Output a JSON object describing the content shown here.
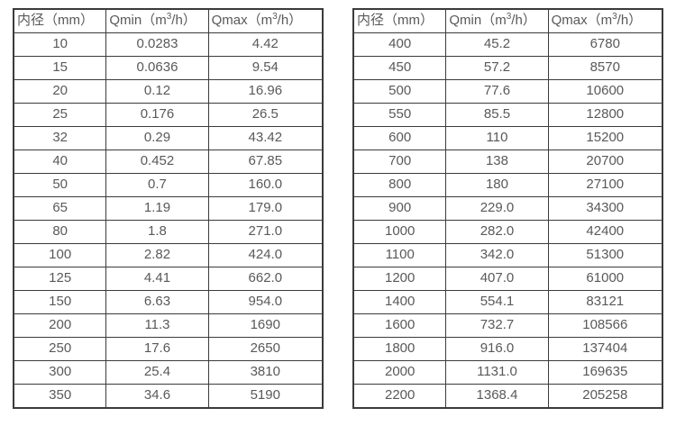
{
  "tables": [
    {
      "name": "flow-rate-table-small-diameters",
      "headers": [
        "内径（mm）",
        "Qmin（m³/h）",
        "Qmax（m³/h）"
      ],
      "rows": [
        [
          "10",
          "0.0283",
          "4.42"
        ],
        [
          "15",
          "0.0636",
          "9.54"
        ],
        [
          "20",
          "0.12",
          "16.96"
        ],
        [
          "25",
          "0.176",
          "26.5"
        ],
        [
          "32",
          "0.29",
          "43.42"
        ],
        [
          "40",
          "0.452",
          "67.85"
        ],
        [
          "50",
          "0.7",
          "160.0"
        ],
        [
          "65",
          "1.19",
          "179.0"
        ],
        [
          "80",
          "1.8",
          "271.0"
        ],
        [
          "100",
          "2.82",
          "424.0"
        ],
        [
          "125",
          "4.41",
          "662.0"
        ],
        [
          "150",
          "6.63",
          "954.0"
        ],
        [
          "200",
          "11.3",
          "1690"
        ],
        [
          "250",
          "17.6",
          "2650"
        ],
        [
          "300",
          "25.4",
          "3810"
        ],
        [
          "350",
          "34.6",
          "5190"
        ]
      ]
    },
    {
      "name": "flow-rate-table-large-diameters",
      "headers": [
        "内径（mm）",
        "Qmin（m³/h）",
        "Qmax（m³/h）"
      ],
      "rows": [
        [
          "400",
          "45.2",
          "6780"
        ],
        [
          "450",
          "57.2",
          "8570"
        ],
        [
          "500",
          "77.6",
          "10600"
        ],
        [
          "550",
          "85.5",
          "12800"
        ],
        [
          "600",
          "110",
          "15200"
        ],
        [
          "700",
          "138",
          "20700"
        ],
        [
          "800",
          "180",
          "27100"
        ],
        [
          "900",
          "229.0",
          "34300"
        ],
        [
          "1000",
          "282.0",
          "42400"
        ],
        [
          "1100",
          "342.0",
          "51300"
        ],
        [
          "1200",
          "407.0",
          "61000"
        ],
        [
          "1400",
          "554.1",
          "83121"
        ],
        [
          "1600",
          "732.7",
          "108566"
        ],
        [
          "1800",
          "916.0",
          "137404"
        ],
        [
          "2000",
          "1131.0",
          "169635"
        ],
        [
          "2200",
          "1368.4",
          "205258"
        ]
      ]
    }
  ],
  "colors": {
    "border": "#3b3b3b",
    "text": "#595959",
    "background": "#ffffff"
  }
}
